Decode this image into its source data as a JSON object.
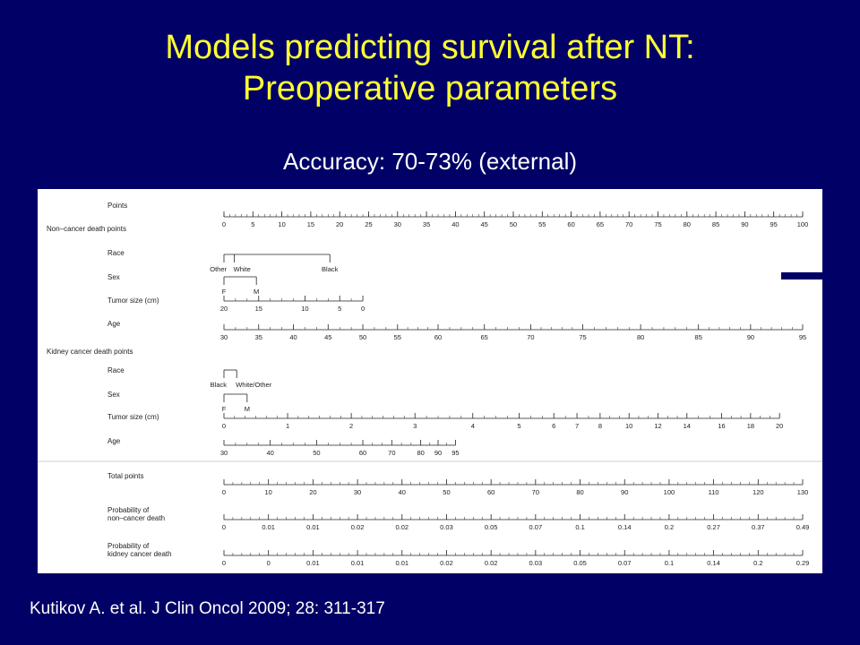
{
  "slide": {
    "title_line1": "Models predicting survival after NT:",
    "title_line2": "Preoperative parameters",
    "subtitle": "Accuracy: 70-73% (external)",
    "citation": "Kutikov A. et al. J Clin Oncol 2009; 28: 311-317"
  },
  "colors": {
    "background": "#000066",
    "title": "#ffff33",
    "text": "#ffffff",
    "chart_ink": "#222222"
  },
  "chart_data": {
    "type": "nomogram",
    "sections": {
      "noncancer": "Non–cancer death points",
      "kidney": "Kidney cancer death points"
    },
    "scales": [
      {
        "key": "points",
        "label": "Points",
        "section": "points",
        "ticks": [
          {
            "label": "0",
            "points": 0
          },
          {
            "label": "5",
            "points": 5
          },
          {
            "label": "10",
            "points": 10
          },
          {
            "label": "15",
            "points": 15
          },
          {
            "label": "20",
            "points": 20
          },
          {
            "label": "25",
            "points": 25
          },
          {
            "label": "30",
            "points": 30
          },
          {
            "label": "35",
            "points": 35
          },
          {
            "label": "40",
            "points": 40
          },
          {
            "label": "45",
            "points": 45
          },
          {
            "label": "50",
            "points": 50
          },
          {
            "label": "55",
            "points": 55
          },
          {
            "label": "60",
            "points": 60
          },
          {
            "label": "65",
            "points": 65
          },
          {
            "label": "70",
            "points": 70
          },
          {
            "label": "75",
            "points": 75
          },
          {
            "label": "80",
            "points": 80
          },
          {
            "label": "85",
            "points": 85
          },
          {
            "label": "90",
            "points": 90
          },
          {
            "label": "95",
            "points": 95
          },
          {
            "label": "100",
            "points": 100
          }
        ],
        "minor_step": 1
      },
      {
        "key": "nc_race",
        "label": "Race",
        "section": "noncancer",
        "style": "categorical",
        "ticks": [
          {
            "label": "Other",
            "points": 0
          },
          {
            "label": "White",
            "points": 1.8
          },
          {
            "label": "Black",
            "points": 18.3
          }
        ]
      },
      {
        "key": "nc_sex",
        "label": "Sex",
        "section": "noncancer",
        "style": "categorical",
        "ticks": [
          {
            "label": "F",
            "points": 0
          },
          {
            "label": "M",
            "points": 5.6
          }
        ]
      },
      {
        "key": "nc_tumor",
        "label": "Tumor size (cm)",
        "section": "noncancer",
        "ticks": [
          {
            "label": "20",
            "points": 0
          },
          {
            "label": "15",
            "points": 6
          },
          {
            "label": "10",
            "points": 14
          },
          {
            "label": "5",
            "points": 20
          },
          {
            "label": "0",
            "points": 24
          }
        ],
        "minor_step": 1
      },
      {
        "key": "nc_age",
        "label": "Age",
        "section": "noncancer",
        "ticks": [
          {
            "label": "30",
            "points": 0
          },
          {
            "label": "35",
            "points": 6
          },
          {
            "label": "40",
            "points": 12
          },
          {
            "label": "45",
            "points": 18
          },
          {
            "label": "50",
            "points": 24
          },
          {
            "label": "55",
            "points": 30
          },
          {
            "label": "60",
            "points": 37
          },
          {
            "label": "65",
            "points": 45
          },
          {
            "label": "70",
            "points": 53
          },
          {
            "label": "75",
            "points": 62
          },
          {
            "label": "80",
            "points": 72
          },
          {
            "label": "85",
            "points": 82
          },
          {
            "label": "90",
            "points": 91
          },
          {
            "label": "95",
            "points": 100
          }
        ],
        "minor_step": 1
      },
      {
        "key": "kc_race",
        "label": "Race",
        "section": "kidney",
        "style": "categorical",
        "ticks": [
          {
            "label": "Black",
            "points": 0
          },
          {
            "label": "White/Other",
            "points": 2.2
          }
        ]
      },
      {
        "key": "kc_sex",
        "label": "Sex",
        "section": "kidney",
        "style": "categorical",
        "ticks": [
          {
            "label": "F",
            "points": 0
          },
          {
            "label": "M",
            "points": 4
          }
        ]
      },
      {
        "key": "kc_tumor",
        "label": "Tumor size (cm)",
        "section": "kidney",
        "ticks": [
          {
            "label": "0",
            "points": 0
          },
          {
            "label": "1",
            "points": 11
          },
          {
            "label": "2",
            "points": 22
          },
          {
            "label": "3",
            "points": 33
          },
          {
            "label": "4",
            "points": 43
          },
          {
            "label": "5",
            "points": 51
          },
          {
            "label": "6",
            "points": 57
          },
          {
            "label": "7",
            "points": 61
          },
          {
            "label": "8",
            "points": 65
          },
          {
            "label": "10",
            "points": 70
          },
          {
            "label": "12",
            "points": 75
          },
          {
            "label": "14",
            "points": 80
          },
          {
            "label": "16",
            "points": 86
          },
          {
            "label": "18",
            "points": 91
          },
          {
            "label": "20",
            "points": 96
          }
        ],
        "minor_step": 1
      },
      {
        "key": "kc_age",
        "label": "Age",
        "section": "kidney",
        "ticks": [
          {
            "label": "30",
            "points": 0
          },
          {
            "label": "40",
            "points": 8
          },
          {
            "label": "50",
            "points": 16
          },
          {
            "label": "60",
            "points": 24
          },
          {
            "label": "70",
            "points": 29
          },
          {
            "label": "80",
            "points": 34
          },
          {
            "label": "90",
            "points": 37
          },
          {
            "label": "95",
            "points": 40
          }
        ],
        "minor_step": 1
      },
      {
        "key": "total",
        "label": "Total points",
        "section": "totals",
        "ticks": [
          {
            "label": "0",
            "points": 0
          },
          {
            "label": "10",
            "points": 10
          },
          {
            "label": "20",
            "points": 20
          },
          {
            "label": "30",
            "points": 30
          },
          {
            "label": "40",
            "points": 40
          },
          {
            "label": "50",
            "points": 50
          },
          {
            "label": "60",
            "points": 60
          },
          {
            "label": "70",
            "points": 70
          },
          {
            "label": "80",
            "points": 80
          },
          {
            "label": "90",
            "points": 90
          },
          {
            "label": "100",
            "points": 100
          },
          {
            "label": "110",
            "points": 110
          },
          {
            "label": "120",
            "points": 120
          },
          {
            "label": "130",
            "points": 130
          }
        ],
        "minor_step": 2,
        "max": 130
      },
      {
        "key": "prob_nc",
        "label": "Probability of\nnon–cancer death",
        "section": "totals",
        "ticks": [
          {
            "label": "0",
            "points": 0
          },
          {
            "label": "0.01",
            "points": 10
          },
          {
            "label": "0.01",
            "points": 20
          },
          {
            "label": "0.02",
            "points": 30
          },
          {
            "label": "0.02",
            "points": 40
          },
          {
            "label": "0.03",
            "points": 50
          },
          {
            "label": "0.05",
            "points": 60
          },
          {
            "label": "0.07",
            "points": 70
          },
          {
            "label": "0.1",
            "points": 80
          },
          {
            "label": "0.14",
            "points": 90
          },
          {
            "label": "0.2",
            "points": 100
          },
          {
            "label": "0.27",
            "points": 110
          },
          {
            "label": "0.37",
            "points": 120
          },
          {
            "label": "0.49",
            "points": 130
          }
        ],
        "minor_step": 2,
        "max": 130
      },
      {
        "key": "prob_kc",
        "label": "Probability of\nkidney cancer death",
        "section": "totals",
        "ticks": [
          {
            "label": "0",
            "points": 0
          },
          {
            "label": "0",
            "points": 10
          },
          {
            "label": "0.01",
            "points": 20
          },
          {
            "label": "0.01",
            "points": 30
          },
          {
            "label": "0.01",
            "points": 40
          },
          {
            "label": "0.02",
            "points": 50
          },
          {
            "label": "0.02",
            "points": 60
          },
          {
            "label": "0.03",
            "points": 70
          },
          {
            "label": "0.05",
            "points": 80
          },
          {
            "label": "0.07",
            "points": 90
          },
          {
            "label": "0.1",
            "points": 100
          },
          {
            "label": "0.14",
            "points": 110
          },
          {
            "label": "0.2",
            "points": 120
          },
          {
            "label": "0.29",
            "points": 130
          }
        ],
        "minor_step": 2,
        "max": 130
      }
    ]
  }
}
